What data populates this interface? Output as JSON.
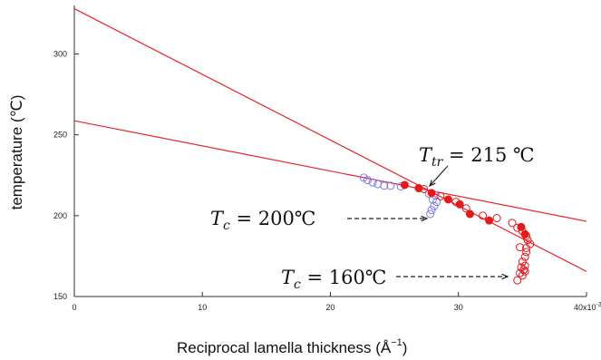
{
  "chart_data": {
    "type": "scatter",
    "title": "",
    "xlabel": "Reciprocal lamella thickness (Å",
    "xlabel_sup": "−1",
    "xlabel_close": ")",
    "ylabel": "temperature (℃)",
    "xlim": [
      0,
      40
    ],
    "ylim": [
      150,
      330
    ],
    "xticks": [
      0,
      10,
      20,
      30
    ],
    "xtick_last_label": "40x10",
    "xtick_last_sup": "-3",
    "yticks": [
      150,
      200,
      250,
      300
    ],
    "grid": false,
    "colors": {
      "blue_series": "#7b7bf0",
      "red_series": "#e41a1c",
      "lines": "#e8262b",
      "axis": "#333333"
    },
    "lines": [
      {
        "x": [
          0,
          40
        ],
        "y": [
          328,
          165.5
        ]
      },
      {
        "x": [
          0,
          40
        ],
        "y": [
          258.7,
          196.5
        ]
      }
    ],
    "series": [
      {
        "marker": "open-circle",
        "color": "#7b7bf0",
        "points": [
          [
            22.6,
            223.5
          ],
          [
            22.9,
            222
          ],
          [
            23.3,
            220.5
          ],
          [
            23.7,
            219.5
          ],
          [
            24.2,
            218.5
          ],
          [
            24.7,
            218.5
          ],
          [
            25.5,
            218
          ],
          [
            27.7,
            213.5
          ],
          [
            28.2,
            212.5
          ],
          [
            28.0,
            210
          ],
          [
            28.3,
            208.5
          ],
          [
            28.1,
            206
          ],
          [
            27.9,
            203.5
          ],
          [
            27.8,
            201
          ]
        ]
      },
      {
        "marker": "filled-circle",
        "color": "#e41a1c",
        "points": [
          [
            25.8,
            219
          ],
          [
            26.9,
            217
          ],
          [
            27.9,
            214
          ],
          [
            29.2,
            210
          ],
          [
            30.1,
            207
          ],
          [
            30.9,
            201
          ],
          [
            32.4,
            197
          ],
          [
            34.9,
            193
          ],
          [
            35.2,
            188.5
          ]
        ]
      },
      {
        "marker": "open-circle",
        "color": "#e41a1c",
        "points": [
          [
            27.3,
            216.5
          ],
          [
            28.6,
            212
          ],
          [
            29.8,
            208.5
          ],
          [
            30.6,
            204.5
          ],
          [
            31.9,
            200
          ],
          [
            33.0,
            198.5
          ],
          [
            34.2,
            195.5
          ],
          [
            34.6,
            192.5
          ],
          [
            35.0,
            190.5
          ],
          [
            35.3,
            187.5
          ],
          [
            35.4,
            185
          ],
          [
            35.6,
            182.5
          ],
          [
            35.3,
            180
          ],
          [
            34.8,
            180.5
          ],
          [
            35.3,
            177.5
          ],
          [
            35.2,
            174.5
          ],
          [
            35.0,
            171.5
          ],
          [
            35.2,
            169
          ],
          [
            34.9,
            168
          ],
          [
            35.1,
            166.5
          ],
          [
            35.2,
            165.5
          ],
          [
            34.8,
            164.5
          ],
          [
            35.0,
            163
          ],
          [
            34.6,
            160
          ]
        ]
      }
    ],
    "annotations": [
      {
        "math": "T",
        "sub": "tr",
        "text": " = 215 ℃",
        "tip": [
          28.0,
          217
        ]
      },
      {
        "math": "T",
        "sub": "c",
        "text": " = 200℃",
        "tip": [
          27.9,
          200
        ]
      },
      {
        "math": "T",
        "sub": "c",
        "text": " = 160℃",
        "tip": [
          34.4,
          161
        ]
      }
    ]
  }
}
